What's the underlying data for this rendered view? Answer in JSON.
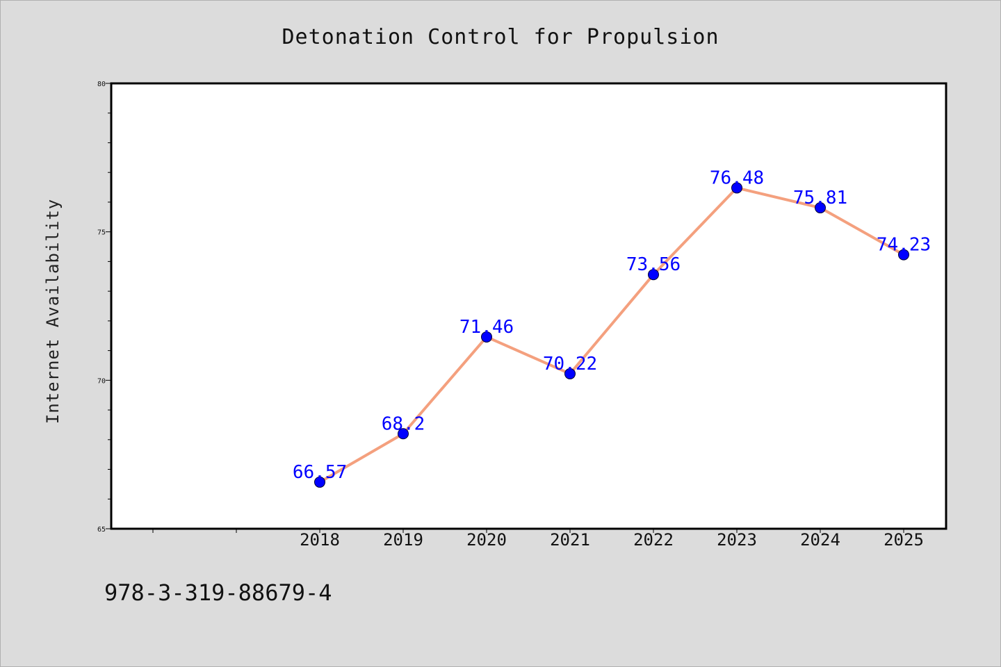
{
  "chart_data": {
    "type": "line",
    "title": "Detonation Control for Propulsion",
    "xlabel": "",
    "ylabel": "Internet Availability",
    "categories": [
      "2018",
      "2019",
      "2020",
      "2021",
      "2022",
      "2023",
      "2024",
      "2025"
    ],
    "series": [
      {
        "values": [
          66.57,
          68.2,
          71.46,
          70.22,
          73.56,
          76.48,
          75.81,
          74.23
        ]
      }
    ],
    "data_labels": [
      "66.57",
      "68.2",
      "71.46",
      "70.22",
      "73.56",
      "76.48",
      "75.81",
      "74.23"
    ],
    "ylim": [
      65,
      80
    ],
    "yticks": [
      "65",
      "70",
      "75",
      "80"
    ],
    "grid": false,
    "line_color": "#f4a07e",
    "marker_color": "#0000ff",
    "label_color": "#0000ff",
    "background_color": "#dcdcdc"
  },
  "footer": {
    "isbn": "978-3-319-88679-4"
  }
}
